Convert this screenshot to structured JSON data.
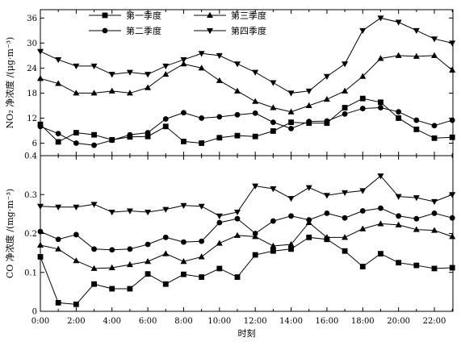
{
  "chart_data": [
    {
      "type": "line",
      "ylabel": "NO₂ 净浓度 /(μg·m⁻³)",
      "ylim": [
        3,
        38
      ],
      "yticks": [
        6,
        12,
        18,
        24,
        30,
        36
      ],
      "x": [
        "0:00",
        "1:00",
        "2:00",
        "3:00",
        "4:00",
        "5:00",
        "6:00",
        "7:00",
        "8:00",
        "9:00",
        "10:00",
        "11:00",
        "12:00",
        "13:00",
        "14:00",
        "15:00",
        "16:00",
        "17:00",
        "18:00",
        "19:00",
        "20:00",
        "21:00",
        "22:00",
        "23:00"
      ],
      "legend_position": "top",
      "series": [
        {
          "name": "第一季度",
          "marker": "square",
          "values": [
            10.5,
            6.3,
            8.5,
            8.0,
            6.8,
            7.5,
            7.6,
            10.0,
            6.4,
            6.0,
            7.3,
            7.8,
            7.6,
            8.9,
            11.0,
            10.8,
            10.8,
            14.5,
            16.7,
            15.8,
            12.0,
            9.3,
            7.2,
            7.4
          ]
        },
        {
          "name": "第二季度",
          "marker": "circle",
          "values": [
            10.0,
            8.3,
            6.0,
            5.5,
            6.7,
            8.0,
            8.5,
            11.8,
            13.3,
            12.0,
            12.3,
            12.8,
            13.2,
            11.0,
            9.5,
            11.2,
            11.3,
            13.0,
            14.3,
            14.5,
            13.5,
            11.5,
            10.2,
            11.5
          ]
        },
        {
          "name": "第三季度",
          "marker": "triangle-up",
          "values": [
            21.5,
            20.3,
            18.0,
            18.0,
            18.5,
            18.0,
            19.3,
            22.5,
            25.0,
            24.0,
            21.0,
            18.5,
            16.0,
            14.5,
            13.5,
            15.0,
            16.5,
            18.5,
            22.0,
            26.3,
            27.0,
            26.8,
            27.0,
            23.5
          ]
        },
        {
          "name": "第四季度",
          "marker": "triangle-down",
          "values": [
            28.0,
            26.0,
            24.5,
            24.5,
            22.5,
            23.0,
            22.5,
            24.5,
            26.0,
            27.5,
            27.0,
            25.0,
            23.0,
            20.5,
            18.0,
            18.5,
            22.0,
            25.0,
            33.0,
            36.0,
            35.0,
            33.0,
            31.0,
            30.0
          ]
        }
      ]
    },
    {
      "type": "line",
      "ylabel": "CO 净浓度 /(mg·m⁻³)",
      "xlabel": "时刻",
      "ylim": [
        0,
        0.4
      ],
      "yticks": [
        0,
        0.1,
        0.2,
        0.3,
        0.4
      ],
      "ytick_labels": [
        "0",
        "0.1",
        "0.2",
        "0.3",
        "0.4"
      ],
      "x": [
        "0:00",
        "1:00",
        "2:00",
        "3:00",
        "4:00",
        "5:00",
        "6:00",
        "7:00",
        "8:00",
        "9:00",
        "10:00",
        "11:00",
        "12:00",
        "13:00",
        "14:00",
        "15:00",
        "16:00",
        "17:00",
        "18:00",
        "19:00",
        "20:00",
        "21:00",
        "22:00",
        "23:00"
      ],
      "xtick_labels": [
        "0:00",
        "2:00",
        "4:00",
        "6:00",
        "8:00",
        "10:00",
        "12:00",
        "14:00",
        "16:00",
        "18:00",
        "20:00",
        "22:00"
      ],
      "series": [
        {
          "name": "第一季度",
          "marker": "square",
          "values": [
            0.14,
            0.022,
            0.018,
            0.07,
            0.058,
            0.058,
            0.096,
            0.07,
            0.095,
            0.088,
            0.11,
            0.088,
            0.145,
            0.155,
            0.16,
            0.19,
            0.185,
            0.155,
            0.115,
            0.148,
            0.125,
            0.118,
            0.11,
            0.112
          ]
        },
        {
          "name": "第二季度",
          "marker": "circle",
          "values": [
            0.205,
            0.185,
            0.197,
            0.16,
            0.158,
            0.16,
            0.172,
            0.19,
            0.178,
            0.18,
            0.228,
            0.238,
            0.2,
            0.232,
            0.245,
            0.235,
            0.252,
            0.24,
            0.258,
            0.265,
            0.245,
            0.238,
            0.252,
            0.24
          ]
        },
        {
          "name": "第三季度",
          "marker": "triangle-up",
          "values": [
            0.17,
            0.16,
            0.13,
            0.11,
            0.112,
            0.12,
            0.128,
            0.148,
            0.128,
            0.14,
            0.175,
            0.195,
            0.192,
            0.168,
            0.172,
            0.228,
            0.19,
            0.19,
            0.212,
            0.225,
            0.222,
            0.21,
            0.208,
            0.192
          ]
        },
        {
          "name": "第四季度",
          "marker": "triangle-down",
          "values": [
            0.27,
            0.268,
            0.268,
            0.275,
            0.255,
            0.258,
            0.255,
            0.262,
            0.272,
            0.27,
            0.245,
            0.255,
            0.322,
            0.315,
            0.29,
            0.318,
            0.298,
            0.305,
            0.31,
            0.348,
            0.295,
            0.292,
            0.282,
            0.3
          ]
        }
      ]
    }
  ]
}
